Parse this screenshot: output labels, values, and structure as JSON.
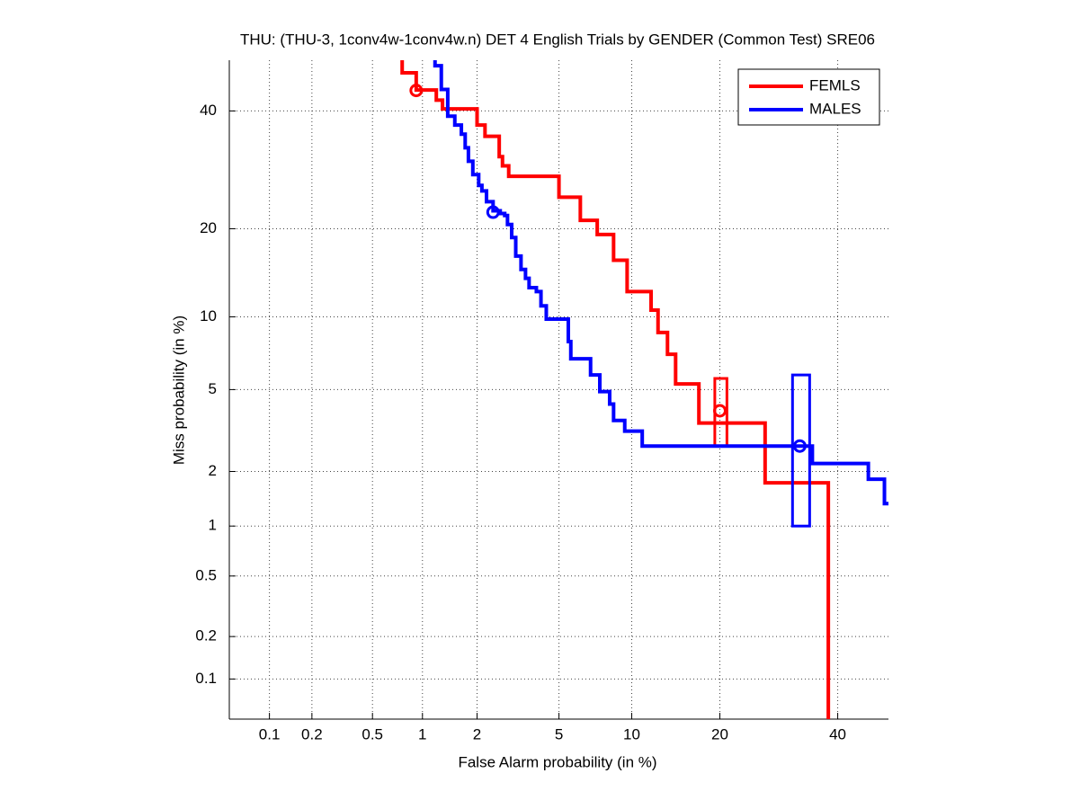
{
  "chart_data": {
    "type": "det",
    "title": "THU: (THU-3, 1conv4w-1conv4w.n) DET 4 English Trials by GENDER (Common Test) SRE06",
    "xlabel": "False Alarm probability (in %)",
    "ylabel": "Miss probability (in %)",
    "xscale": "probit",
    "yscale": "probit",
    "xlim": [
      0.05,
      50
    ],
    "ylim": [
      0.05,
      50
    ],
    "xticks": [
      0.1,
      0.2,
      0.5,
      1,
      2,
      5,
      10,
      20,
      40
    ],
    "yticks": [
      0.1,
      0.2,
      0.5,
      1,
      2,
      5,
      10,
      20,
      40
    ],
    "grid": true,
    "legend": "upper right",
    "series": [
      {
        "name": "FEMLS",
        "color": "#ff0000",
        "x": [
          0.76,
          0.76,
          0.92,
          0.92,
          1.2,
          1.2,
          1.3,
          1.3,
          2.0,
          2.0,
          2.2,
          2.2,
          2.6,
          2.6,
          2.7,
          2.7,
          2.9,
          2.9,
          5.0,
          5.0,
          6.2,
          6.2,
          7.3,
          7.3,
          8.5,
          8.5,
          9.6,
          9.6,
          11.8,
          11.8,
          12.5,
          12.5,
          13.5,
          13.5,
          14.4,
          14.4,
          17.2,
          17.2,
          26.9,
          26.9,
          38.2,
          38.2
        ],
        "y": [
          50,
          47.5,
          47.5,
          44.1,
          44.1,
          42.1,
          42.1,
          40.4,
          40.4,
          37.3,
          37.3,
          35.2,
          35.2,
          31.5,
          31.5,
          29.9,
          29.9,
          28.1,
          28.1,
          24.7,
          24.7,
          21.2,
          21.2,
          19.2,
          19.2,
          15.9,
          15.9,
          12.4,
          12.4,
          10.6,
          10.6,
          8.7,
          8.7,
          7.1,
          7.1,
          5.3,
          5.3,
          3.5,
          3.5,
          1.74,
          1.74,
          0.05
        ],
        "points": {
          "x": [
            0.92,
            20
          ],
          "y": [
            44.0,
            4.0
          ]
        },
        "box": {
          "x": [
            19.3,
            21.0
          ],
          "y": [
            2.7,
            5.6
          ]
        }
      },
      {
        "name": "MALES",
        "color": "#0000ff",
        "x": [
          1.18,
          1.18,
          1.28,
          1.28,
          1.39,
          1.39,
          1.52,
          1.52,
          1.65,
          1.65,
          1.73,
          1.73,
          1.8,
          1.8,
          1.9,
          1.9,
          2.04,
          2.04,
          2.12,
          2.12,
          2.24,
          2.24,
          2.42,
          2.42,
          2.63,
          2.63,
          2.77,
          2.77,
          2.86,
          2.86,
          3.0,
          3.0,
          3.14,
          3.14,
          3.33,
          3.33,
          3.5,
          3.5,
          3.64,
          3.64,
          3.94,
          3.94,
          4.14,
          4.14,
          4.38,
          4.38,
          5.5,
          5.5,
          5.64,
          5.64,
          6.85,
          6.85,
          7.48,
          7.48,
          8.2,
          8.2,
          8.5,
          8.5,
          9.4,
          9.4,
          10.95,
          10.95,
          35.2,
          35.2,
          46.0,
          46.0,
          49.2,
          49.2,
          50
        ],
        "y": [
          50,
          48.9,
          48.9,
          44.2,
          44.2,
          39.0,
          39.0,
          37.3,
          37.3,
          35.6,
          35.6,
          33.1,
          33.1,
          30.7,
          30.7,
          28.4,
          28.4,
          26.6,
          26.6,
          25.7,
          25.7,
          24.0,
          24.0,
          22.6,
          22.6,
          22.2,
          22.2,
          21.9,
          21.9,
          20.6,
          20.6,
          18.8,
          18.8,
          16.4,
          16.4,
          14.8,
          14.8,
          13.8,
          13.8,
          12.8,
          12.8,
          12.4,
          12.4,
          11.0,
          11.0,
          9.8,
          9.8,
          8.0,
          8.0,
          6.8,
          6.8,
          5.8,
          5.8,
          4.9,
          4.9,
          4.3,
          4.3,
          3.6,
          3.6,
          3.2,
          3.2,
          2.7,
          2.7,
          2.2,
          2.2,
          1.82,
          1.82,
          1.34,
          1.34
        ],
        "points": {
          "x": [
            2.42,
            32.9
          ],
          "y": [
            22.4,
            2.7
          ]
        },
        "box": {
          "x": [
            31.6,
            34.7
          ],
          "y": [
            1.0,
            5.8
          ]
        }
      }
    ]
  }
}
